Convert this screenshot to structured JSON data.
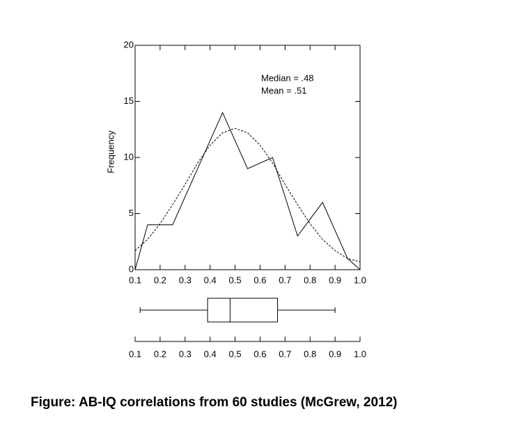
{
  "chart_data": [
    {
      "type": "line",
      "y_label": "Frequency",
      "annotations": [
        "Median = .48",
        "Mean = .51"
      ],
      "xlim": [
        0.1,
        1.0
      ],
      "xticks": [
        0.1,
        0.2,
        0.3,
        0.4,
        0.5,
        0.6,
        0.7,
        0.8,
        0.9,
        {
          "value": 1,
          "label": "1.0"
        }
      ],
      "ylim": [
        0,
        20
      ],
      "yticks": [
        0,
        5,
        10,
        15,
        20
      ],
      "series": [
        {
          "color": "#000000",
          "style": "solid",
          "x": [
            0.1,
            0.15,
            0.25,
            0.45,
            0.55,
            0.65,
            0.75,
            0.85,
            0.95,
            1.0
          ],
          "values": [
            0,
            4,
            4,
            14,
            9,
            10,
            3,
            6,
            1,
            0
          ]
        },
        {
          "color": "#000000",
          "style": "dashed",
          "x": [
            0.1,
            0.15,
            0.2,
            0.25,
            0.3,
            0.35,
            0.4,
            0.45,
            0.5,
            0.55,
            0.6,
            0.65,
            0.7,
            0.75,
            0.8,
            0.85,
            0.9,
            0.95,
            1.0
          ],
          "values": [
            1.7,
            2.7,
            4.1,
            5.8,
            7.6,
            9.5,
            11.1,
            12.2,
            12.6,
            12.2,
            11.1,
            9.5,
            7.6,
            5.8,
            4.1,
            2.7,
            1.7,
            1.0,
            0.7
          ]
        }
      ]
    },
    {
      "type": "box",
      "min": 0.12,
      "q1": 0.39,
      "median": 0.48,
      "q3": 0.67,
      "max": 0.9,
      "xlim": [
        0.1,
        1.0
      ],
      "xticks": [
        0.1,
        0.2,
        0.3,
        0.4,
        0.5,
        0.6,
        0.7,
        0.8,
        0.9,
        {
          "value": 1,
          "label": "1.0"
        }
      ]
    }
  ],
  "caption": "Figure:  AB-IQ correlations from 60 studies (McGrew, 2012)"
}
